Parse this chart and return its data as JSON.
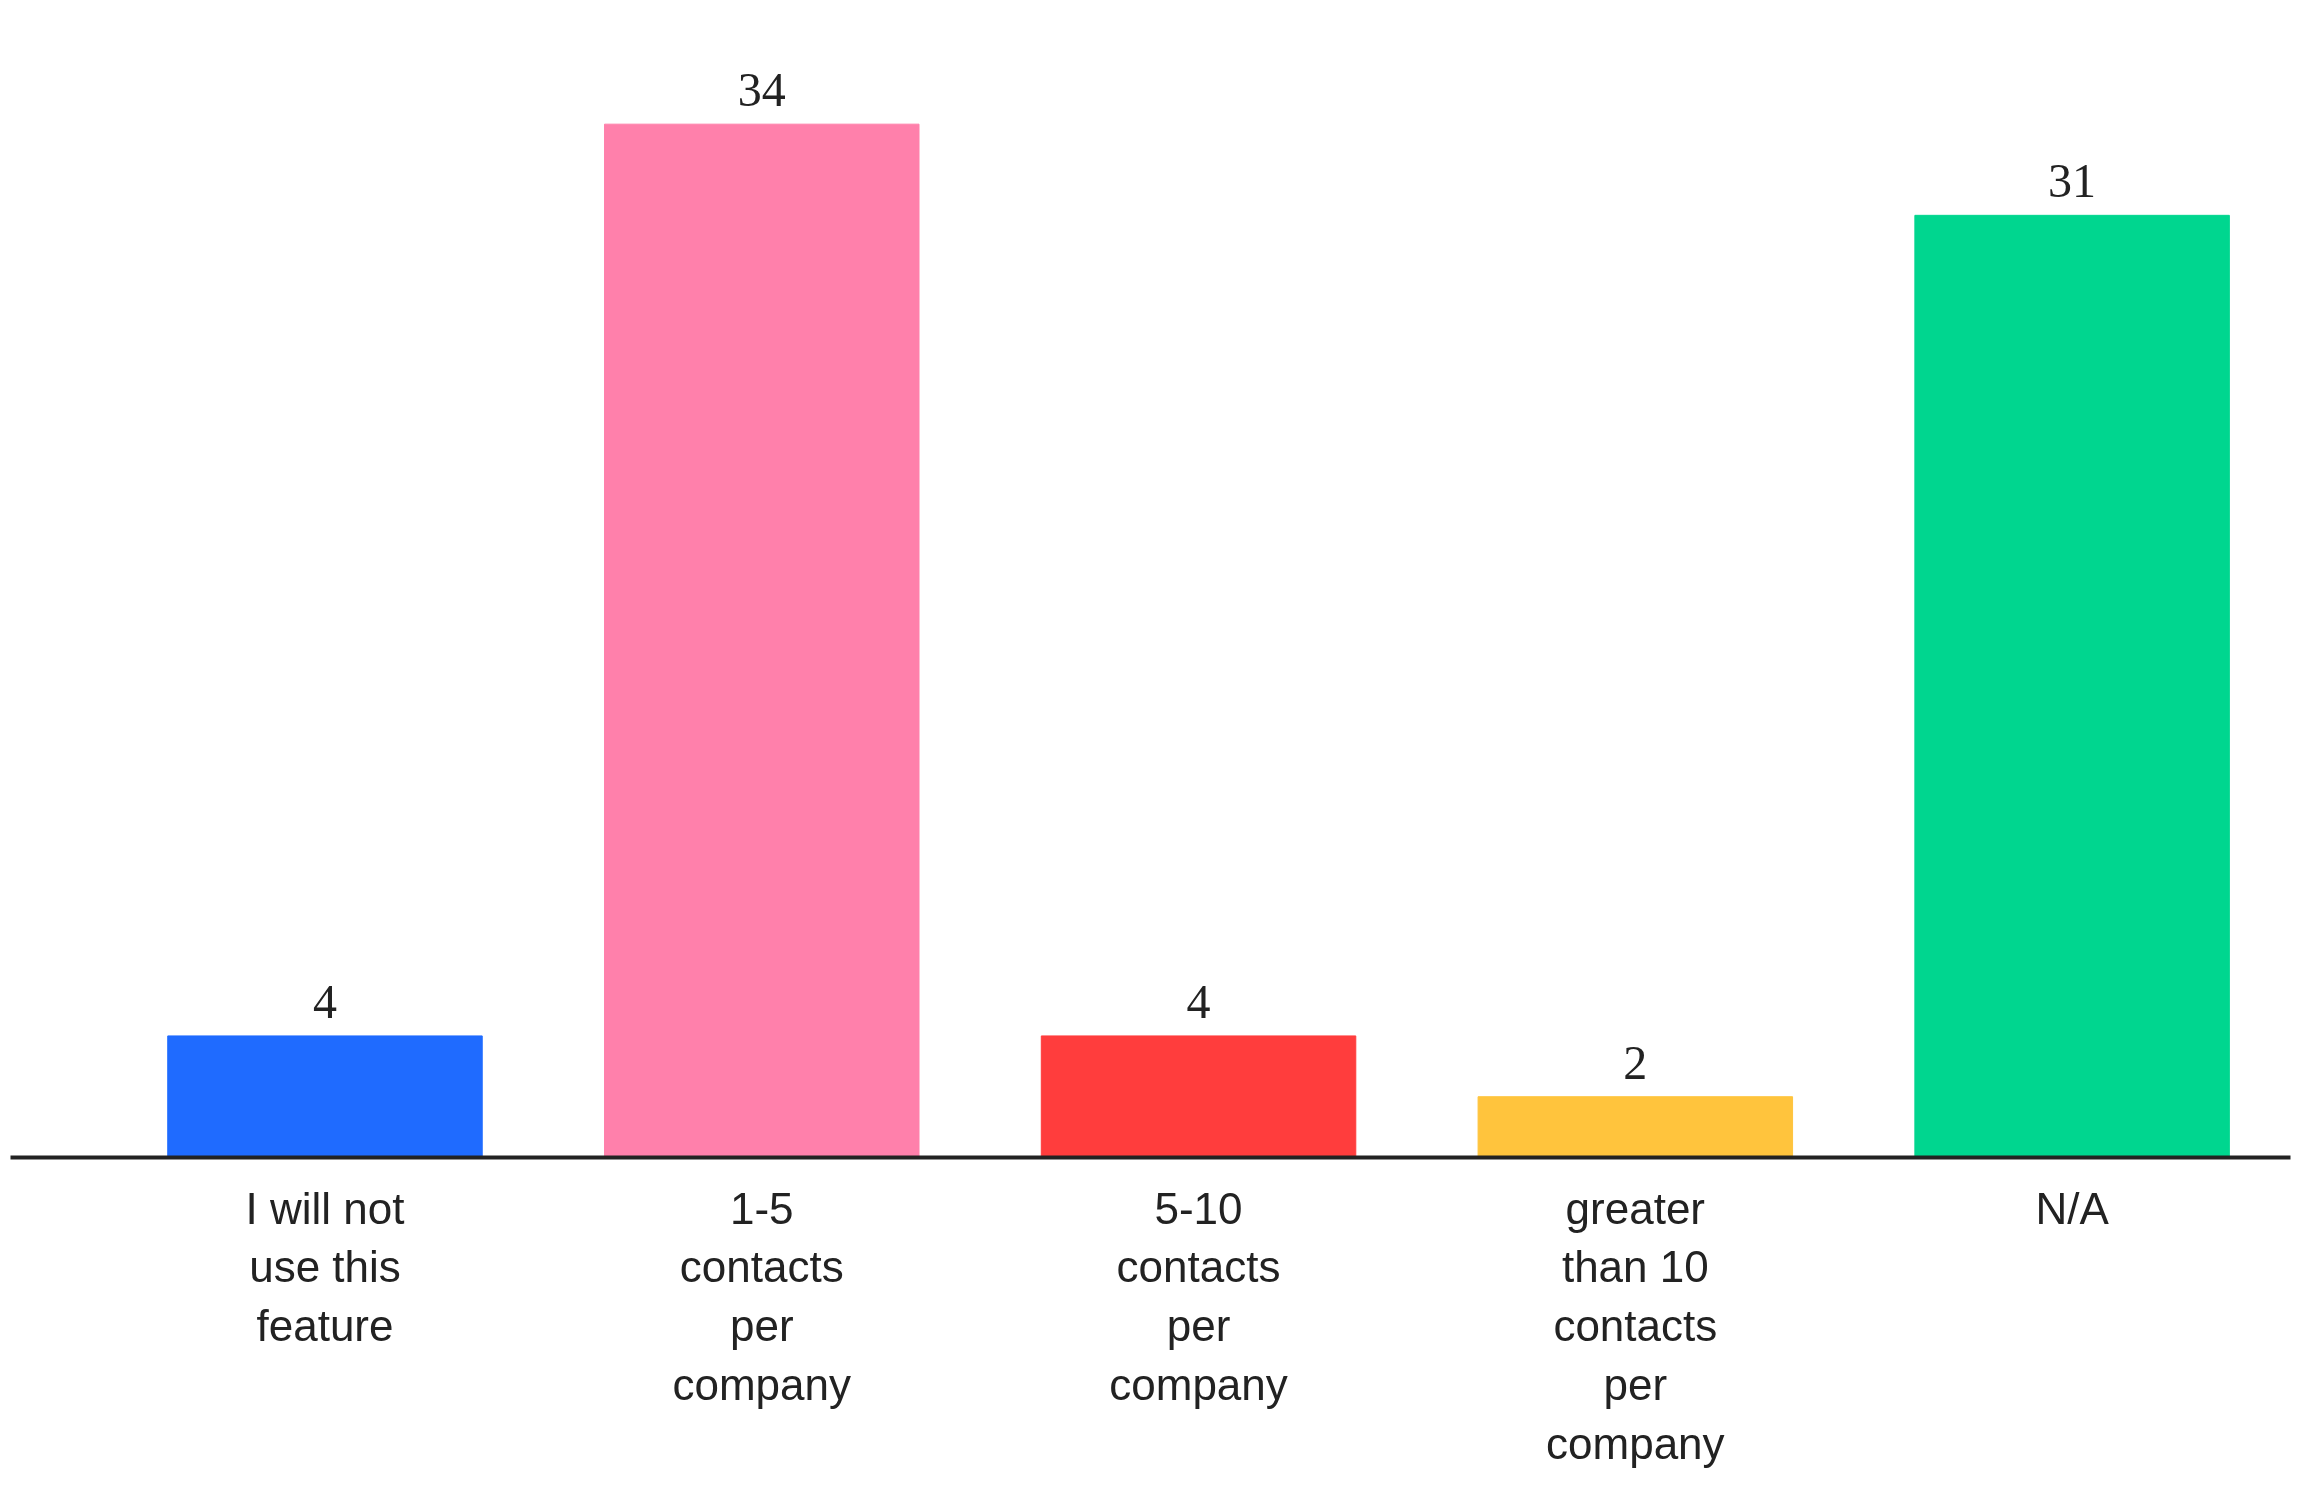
{
  "chart_data": {
    "type": "bar",
    "categories": [
      "I will not use this feature",
      "1-5 contacts per company",
      "5-10 contacts per company",
      "greater than 10 contacts per company",
      "N/A"
    ],
    "values": [
      4,
      34,
      4,
      2,
      31
    ],
    "colors": [
      "#1f6bff",
      "#ff80ab",
      "#ff3d3d",
      "#ffc43d",
      "#00d68f"
    ],
    "data_labels": true
  }
}
